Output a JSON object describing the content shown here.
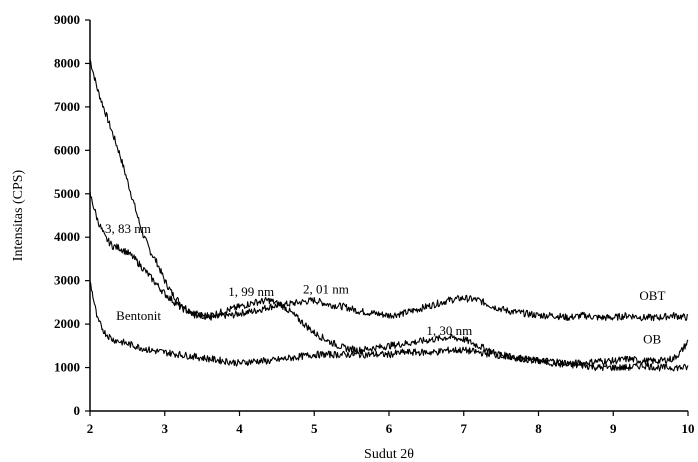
{
  "chart_data": {
    "type": "line",
    "title": "",
    "xlabel": "Sudut 2θ",
    "ylabel": "Intensitas (CPS)",
    "xlim": [
      2,
      10
    ],
    "ylim": [
      0,
      9000
    ],
    "xticks": [
      "2",
      "3",
      "4",
      "5",
      "6",
      "7",
      "8",
      "9",
      "10"
    ],
    "yticks": [
      "0",
      "1000",
      "2000",
      "3000",
      "4000",
      "5000",
      "6000",
      "7000",
      "8000",
      "9000"
    ],
    "grid": false,
    "legend": "none",
    "line_color": "#000000",
    "series": [
      {
        "name": "OBT",
        "x": [
          2.0,
          2.1,
          2.2,
          2.3,
          2.4,
          2.5,
          2.6,
          2.7,
          2.8,
          2.9,
          3.0,
          3.1,
          3.2,
          3.3,
          3.4,
          3.5,
          3.6,
          3.7,
          3.8,
          3.9,
          4.0,
          4.2,
          4.4,
          4.6,
          4.8,
          5.0,
          5.2,
          5.4,
          5.6,
          5.8,
          6.0,
          6.2,
          6.4,
          6.6,
          6.8,
          7.0,
          7.2,
          7.4,
          7.6,
          7.8,
          8.0,
          8.2,
          8.4,
          8.6,
          8.8,
          9.0,
          9.2,
          9.4,
          9.6,
          9.8,
          10.0
        ],
        "y": [
          8100,
          7400,
          6900,
          6400,
          5900,
          5300,
          4700,
          4100,
          3700,
          3400,
          3000,
          2700,
          2500,
          2350,
          2250,
          2200,
          2150,
          2150,
          2200,
          2200,
          2250,
          2300,
          2400,
          2450,
          2500,
          2550,
          2450,
          2400,
          2300,
          2250,
          2200,
          2250,
          2350,
          2450,
          2550,
          2600,
          2550,
          2400,
          2300,
          2250,
          2200,
          2200,
          2150,
          2200,
          2150,
          2150,
          2200,
          2150,
          2150,
          2200,
          2150
        ]
      },
      {
        "name": "OB",
        "x": [
          2.0,
          2.1,
          2.2,
          2.3,
          2.4,
          2.5,
          2.6,
          2.7,
          2.8,
          2.9,
          3.0,
          3.2,
          3.4,
          3.6,
          3.8,
          4.0,
          4.2,
          4.4,
          4.6,
          4.8,
          5.0,
          5.2,
          5.4,
          5.6,
          5.8,
          6.0,
          6.2,
          6.4,
          6.6,
          6.8,
          7.0,
          7.2,
          7.4,
          7.6,
          7.8,
          8.0,
          8.2,
          8.4,
          8.6,
          8.8,
          9.0,
          9.2,
          9.4,
          9.6,
          9.8,
          9.9,
          10.0
        ],
        "y": [
          5000,
          4400,
          4000,
          3800,
          3750,
          3650,
          3500,
          3300,
          3100,
          2900,
          2700,
          2400,
          2200,
          2200,
          2300,
          2400,
          2500,
          2550,
          2400,
          2100,
          1800,
          1600,
          1450,
          1400,
          1450,
          1500,
          1550,
          1600,
          1650,
          1700,
          1650,
          1500,
          1350,
          1250,
          1200,
          1150,
          1150,
          1100,
          1100,
          1150,
          1150,
          1200,
          1150,
          1150,
          1200,
          1350,
          1600
        ]
      },
      {
        "name": "Bentonit",
        "x": [
          2.0,
          2.1,
          2.2,
          2.3,
          2.4,
          2.5,
          2.6,
          2.8,
          3.0,
          3.2,
          3.4,
          3.6,
          3.8,
          4.0,
          4.2,
          4.4,
          4.6,
          4.8,
          5.0,
          5.2,
          5.4,
          5.6,
          5.8,
          6.0,
          6.2,
          6.4,
          6.6,
          6.8,
          7.0,
          7.2,
          7.4,
          7.6,
          7.8,
          8.0,
          8.2,
          8.4,
          8.6,
          8.8,
          9.0,
          9.2,
          9.4,
          9.6,
          9.8,
          10.0
        ],
        "y": [
          3000,
          2100,
          1800,
          1650,
          1600,
          1550,
          1500,
          1400,
          1350,
          1300,
          1250,
          1200,
          1150,
          1100,
          1150,
          1150,
          1200,
          1250,
          1300,
          1300,
          1300,
          1300,
          1300,
          1300,
          1350,
          1350,
          1350,
          1400,
          1400,
          1350,
          1300,
          1250,
          1200,
          1150,
          1100,
          1050,
          1050,
          1000,
          1000,
          1000,
          1050,
          1000,
          1000,
          1000
        ]
      }
    ],
    "annotations": [
      {
        "text": "3, 83 nm",
        "x": 2.2,
        "y": 4100
      },
      {
        "text": "1, 99 nm",
        "x": 3.85,
        "y": 2650
      },
      {
        "text": "2, 01 nm",
        "x": 4.85,
        "y": 2700
      },
      {
        "text": "1, 30 nm",
        "x": 6.5,
        "y": 1750
      },
      {
        "text": "OBT",
        "x": 9.35,
        "y": 2550
      },
      {
        "text": "OB",
        "x": 9.4,
        "y": 1550
      },
      {
        "text": "Bentonit",
        "x": 2.35,
        "y": 2100
      }
    ]
  }
}
